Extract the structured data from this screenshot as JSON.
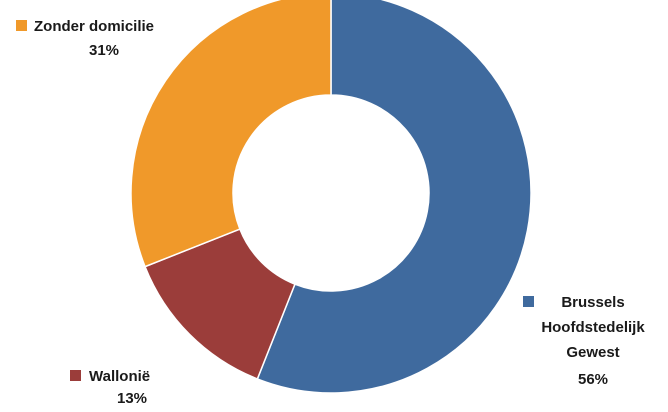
{
  "chart_data": {
    "type": "pie",
    "variant": "donut",
    "title": "",
    "slices": [
      {
        "label": "Brussels Hoofdstedelijk Gewest",
        "label_lines": [
          "Brussels",
          "Hoofdstedelijk",
          "Gewest"
        ],
        "percent_label": "56%",
        "value": 56,
        "color": "#3f6a9e"
      },
      {
        "label": "Wallonië",
        "label_lines": [
          "Wallonië"
        ],
        "percent_label": "13%",
        "value": 13,
        "color": "#9b3d3a"
      },
      {
        "label": "Zonder domicilie",
        "label_lines": [
          "Zonder domicilie"
        ],
        "percent_label": "31%",
        "value": 31,
        "color": "#f0992a"
      }
    ]
  }
}
